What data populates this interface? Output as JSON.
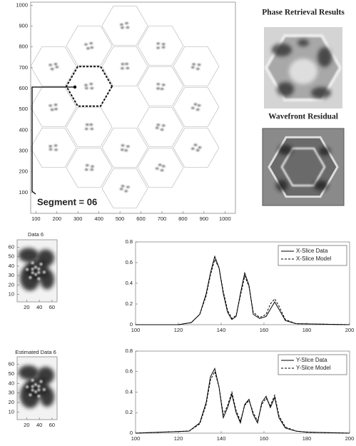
{
  "chart_data": [
    {
      "type": "segment-map",
      "xlim": [
        75,
        1050
      ],
      "ylim": [
        0,
        1015
      ],
      "xticks": [
        100,
        200,
        300,
        400,
        500,
        600,
        700,
        800,
        900,
        1000
      ],
      "yticks": [
        100,
        200,
        300,
        400,
        500,
        600,
        700,
        800,
        900,
        1000
      ],
      "annotation": "Segment = 06"
    },
    {
      "type": "phase-image",
      "title": "Phase Retrieval Results"
    },
    {
      "type": "residual-image",
      "title": "Wavefront Residual"
    },
    {
      "type": "data-image",
      "title": "Data  6",
      "xlim": [
        5,
        68
      ],
      "ylim": [
        2,
        68
      ],
      "xticks": [
        20,
        40,
        60
      ],
      "yticks": [
        10,
        20,
        30,
        40,
        50,
        60
      ]
    },
    {
      "type": "line",
      "xlim": [
        100,
        200
      ],
      "ylim": [
        0,
        0.8
      ],
      "xticks": [
        100,
        120,
        140,
        160,
        180,
        200
      ],
      "yticks": [
        0,
        0.2,
        0.4,
        0.6,
        0.8
      ],
      "legend": "upper right",
      "x": [
        100,
        120,
        126,
        130,
        133,
        135,
        137,
        139,
        141,
        143,
        145,
        147,
        149,
        151,
        153,
        155,
        158,
        161,
        163,
        165,
        167,
        170,
        175,
        200
      ],
      "series": [
        {
          "name": "X-Slice Data",
          "color": "#000000",
          "style": "solid",
          "values": [
            0,
            0,
            0.02,
            0.1,
            0.3,
            0.5,
            0.66,
            0.55,
            0.3,
            0.12,
            0.05,
            0.08,
            0.3,
            0.5,
            0.38,
            0.1,
            0.06,
            0.08,
            0.15,
            0.22,
            0.15,
            0.04,
            0.01,
            0
          ]
        },
        {
          "name": "X-Slice Model",
          "color": "#000000",
          "style": "dashed",
          "values": [
            0,
            0,
            0.02,
            0.1,
            0.28,
            0.48,
            0.63,
            0.55,
            0.32,
            0.14,
            0.06,
            0.09,
            0.28,
            0.47,
            0.37,
            0.12,
            0.07,
            0.1,
            0.2,
            0.25,
            0.18,
            0.05,
            0.01,
            0
          ]
        }
      ]
    },
    {
      "type": "data-image",
      "title": "Estimated Data  6",
      "xlim": [
        5,
        68
      ],
      "ylim": [
        2,
        68
      ],
      "xticks": [
        20,
        40,
        60
      ],
      "yticks": [
        10,
        20,
        30,
        40,
        50,
        60
      ]
    },
    {
      "type": "line",
      "xlim": [
        100,
        200
      ],
      "ylim": [
        0,
        0.8
      ],
      "xticks": [
        100,
        120,
        140,
        160,
        180,
        200
      ],
      "yticks": [
        0,
        0.2,
        0.4,
        0.6,
        0.8
      ],
      "legend": "upper right",
      "x": [
        100,
        125,
        130,
        133,
        135,
        137,
        139,
        141,
        143,
        145,
        147,
        149,
        151,
        153,
        155,
        157,
        159,
        161,
        163,
        165,
        167,
        170,
        175,
        180,
        200
      ],
      "series": [
        {
          "name": "Y-Slice Data",
          "color": "#000000",
          "style": "solid",
          "values": [
            0,
            0.02,
            0.1,
            0.3,
            0.55,
            0.63,
            0.45,
            0.15,
            0.25,
            0.38,
            0.2,
            0.1,
            0.28,
            0.33,
            0.18,
            0.1,
            0.3,
            0.36,
            0.25,
            0.35,
            0.15,
            0.05,
            0.02,
            0.01,
            0
          ]
        },
        {
          "name": "Y-Slice Model",
          "color": "#000000",
          "style": "dashed",
          "values": [
            0,
            0.02,
            0.09,
            0.28,
            0.52,
            0.6,
            0.45,
            0.18,
            0.27,
            0.4,
            0.22,
            0.12,
            0.27,
            0.32,
            0.2,
            0.12,
            0.28,
            0.34,
            0.27,
            0.37,
            0.17,
            0.06,
            0.02,
            0.01,
            0
          ]
        }
      ]
    }
  ]
}
